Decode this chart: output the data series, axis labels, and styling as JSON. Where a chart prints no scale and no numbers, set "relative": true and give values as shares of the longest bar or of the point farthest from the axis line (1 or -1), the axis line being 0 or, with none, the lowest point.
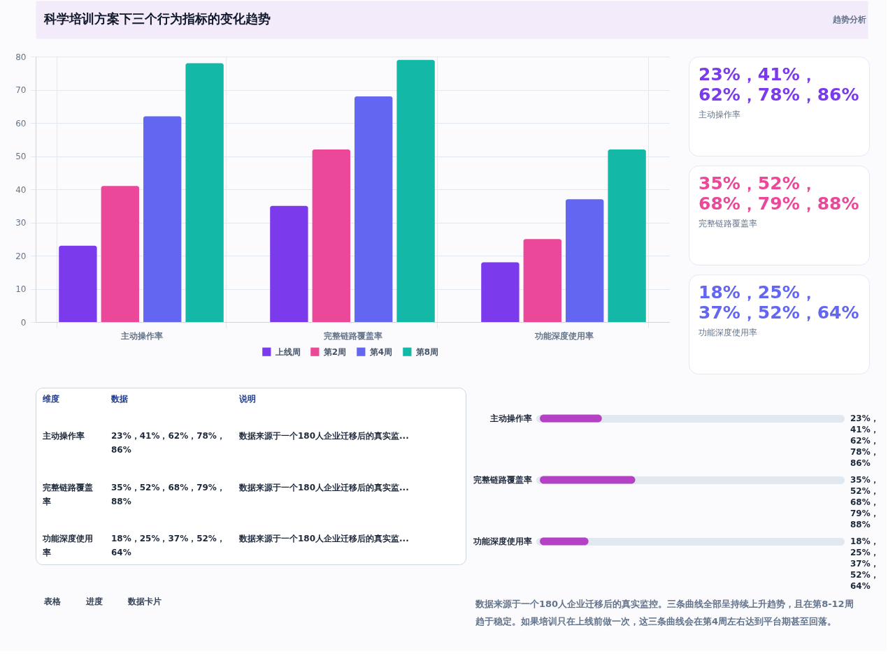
{
  "chart_data": [
    {
      "type": "bar",
      "title": "科学培训方案下三个行为指标的变化趋势",
      "annotations": [
        "趋势分析"
      ],
      "categories": [
        "主动操作率",
        "完整链路覆盖率",
        "功能深度使用率"
      ],
      "series": [
        {
          "name": "上线周",
          "color": "#7c3aed",
          "values": [
            23,
            35,
            18
          ]
        },
        {
          "name": "第2周",
          "color": "#ec4899",
          "values": [
            41,
            52,
            25
          ]
        },
        {
          "name": "第4周",
          "color": "#6366f1",
          "values": [
            62,
            68,
            37
          ]
        },
        {
          "name": "第8周",
          "color": "#14b8a6",
          "values": [
            78,
            79,
            52
          ]
        }
      ],
      "ylim": [
        0,
        80
      ],
      "yticks": [
        0,
        10,
        20,
        30,
        40,
        50,
        60,
        70,
        80
      ],
      "grid": true,
      "legend": "bottom"
    },
    {
      "type": "other",
      "title": "23%，41%，62%，78%，86%",
      "subtitle": "主动操作率",
      "color": "#7c3aed"
    },
    {
      "type": "other",
      "title": "35%，52%，68%，79%，88%",
      "subtitle": "完整链路覆盖率",
      "color": "#ec4899"
    },
    {
      "type": "other",
      "title": "18%，25%，37%，52%，64%",
      "subtitle": "功能深度使用率",
      "color": "#6366f1"
    },
    {
      "type": "other",
      "annotations": [
        "维度",
        "数据",
        "说明",
        "主动操作率",
        "23%，41%，62%，78%，86%",
        "数据来源于一个180人企业迁移后的真实监...",
        "完整链路覆盖率",
        "35%，52%，68%，79%，88%",
        "数据来源于一个180人企业迁移后的真实监...",
        "功能深度使用率",
        "18%，25%，37%，52%，64%",
        "数据来源于一个180人企业迁移后的真实监..."
      ]
    },
    {
      "type": "other",
      "annotations": [
        "表格",
        "进度",
        "数据卡片"
      ]
    },
    {
      "type": "bar",
      "orientation": "horizontal",
      "relative": true,
      "grid": "y",
      "categories": [
        "主动操作率",
        "完整链路覆盖率",
        "功能深度使用率"
      ],
      "series": [
        {
          "color": "#b441c3",
          "values": [
            0.65,
            1,
            0.51
          ]
        }
      ],
      "annotations": [
        "23%，41%，62%，78%，86%",
        "35%，52%，68%，79%，88%",
        "18%，25%，37%，52%，64%"
      ]
    },
    {
      "type": "other",
      "annotations": [
        "数据来源于一个180人企业迁移后的真实监控。三条曲线全部呈持续上升趋势，且在第8-12周趋于稳定。如果培训只在上线前做一次，这三条曲线会在第4周左右达到平台期甚至回落。"
      ]
    }
  ]
}
